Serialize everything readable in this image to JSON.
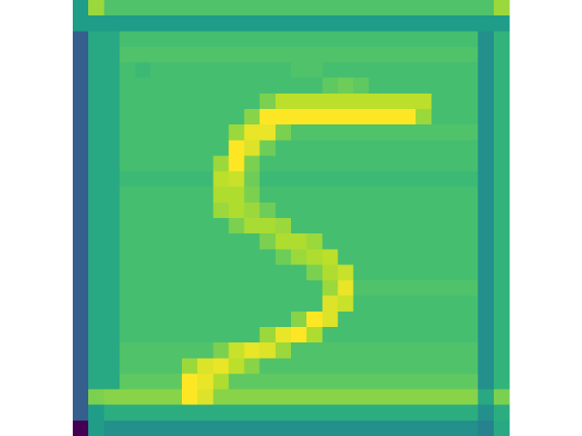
{
  "chart_data": {
    "type": "heatmap",
    "colormap": "viridis",
    "z": [
      [
        0.55,
        0.85,
        0.72,
        0.72,
        0.72,
        0.72,
        0.72,
        0.72,
        0.72,
        0.72,
        0.72,
        0.72,
        0.72,
        0.72,
        0.72,
        0.72,
        0.72,
        0.72,
        0.72,
        0.72,
        0.72,
        0.72,
        0.72,
        0.72,
        0.72,
        0.72,
        0.72,
        0.85
      ],
      [
        0.55,
        0.55,
        0.55,
        0.55,
        0.55,
        0.55,
        0.55,
        0.55,
        0.55,
        0.55,
        0.55,
        0.55,
        0.55,
        0.55,
        0.55,
        0.55,
        0.55,
        0.55,
        0.55,
        0.55,
        0.55,
        0.55,
        0.55,
        0.55,
        0.55,
        0.55,
        0.55,
        0.55
      ],
      [
        0.3,
        0.6,
        0.6,
        0.7,
        0.7,
        0.7,
        0.7,
        0.7,
        0.7,
        0.7,
        0.7,
        0.7,
        0.7,
        0.7,
        0.7,
        0.7,
        0.7,
        0.7,
        0.7,
        0.7,
        0.7,
        0.7,
        0.7,
        0.7,
        0.7,
        0.7,
        0.5,
        0.65
      ],
      [
        0.3,
        0.6,
        0.6,
        0.72,
        0.72,
        0.72,
        0.72,
        0.72,
        0.72,
        0.72,
        0.72,
        0.72,
        0.72,
        0.72,
        0.72,
        0.72,
        0.72,
        0.72,
        0.72,
        0.72,
        0.72,
        0.72,
        0.72,
        0.72,
        0.72,
        0.72,
        0.5,
        0.65
      ],
      [
        0.3,
        0.6,
        0.6,
        0.7,
        0.68,
        0.7,
        0.7,
        0.7,
        0.7,
        0.7,
        0.7,
        0.7,
        0.7,
        0.7,
        0.72,
        0.72,
        0.7,
        0.7,
        0.7,
        0.7,
        0.7,
        0.7,
        0.7,
        0.7,
        0.7,
        0.7,
        0.5,
        0.65
      ],
      [
        0.3,
        0.6,
        0.6,
        0.7,
        0.7,
        0.7,
        0.7,
        0.7,
        0.7,
        0.7,
        0.7,
        0.7,
        0.7,
        0.7,
        0.7,
        0.7,
        0.75,
        0.78,
        0.75,
        0.7,
        0.7,
        0.7,
        0.7,
        0.7,
        0.7,
        0.7,
        0.5,
        0.65
      ],
      [
        0.3,
        0.6,
        0.6,
        0.7,
        0.7,
        0.7,
        0.7,
        0.7,
        0.7,
        0.7,
        0.7,
        0.7,
        0.8,
        0.9,
        0.9,
        0.9,
        0.9,
        0.9,
        0.9,
        0.9,
        0.9,
        0.9,
        0.9,
        0.7,
        0.7,
        0.7,
        0.5,
        0.65
      ],
      [
        0.3,
        0.6,
        0.6,
        0.7,
        0.7,
        0.7,
        0.7,
        0.7,
        0.7,
        0.7,
        0.7,
        0.82,
        1.0,
        1.0,
        1.0,
        1.0,
        1.0,
        1.0,
        1.0,
        1.0,
        1.0,
        1.0,
        0.85,
        0.7,
        0.7,
        0.7,
        0.5,
        0.65
      ],
      [
        0.3,
        0.6,
        0.6,
        0.7,
        0.7,
        0.7,
        0.7,
        0.7,
        0.7,
        0.7,
        0.85,
        0.97,
        0.97,
        0.8,
        0.72,
        0.72,
        0.72,
        0.72,
        0.72,
        0.72,
        0.72,
        0.72,
        0.72,
        0.72,
        0.72,
        0.72,
        0.5,
        0.65
      ],
      [
        0.3,
        0.6,
        0.6,
        0.7,
        0.7,
        0.7,
        0.7,
        0.7,
        0.7,
        0.7,
        1.0,
        0.95,
        0.78,
        0.7,
        0.7,
        0.7,
        0.7,
        0.7,
        0.7,
        0.7,
        0.7,
        0.7,
        0.7,
        0.7,
        0.7,
        0.7,
        0.5,
        0.65
      ],
      [
        0.3,
        0.6,
        0.6,
        0.7,
        0.7,
        0.7,
        0.7,
        0.7,
        0.7,
        0.85,
        1.0,
        0.8,
        0.7,
        0.7,
        0.7,
        0.7,
        0.7,
        0.7,
        0.7,
        0.7,
        0.7,
        0.7,
        0.7,
        0.7,
        0.7,
        0.7,
        0.5,
        0.65
      ],
      [
        0.3,
        0.6,
        0.6,
        0.68,
        0.68,
        0.68,
        0.68,
        0.68,
        0.68,
        0.9,
        0.92,
        0.78,
        0.68,
        0.68,
        0.68,
        0.68,
        0.68,
        0.68,
        0.68,
        0.68,
        0.68,
        0.68,
        0.68,
        0.68,
        0.68,
        0.68,
        0.5,
        0.65
      ],
      [
        0.3,
        0.6,
        0.6,
        0.7,
        0.7,
        0.7,
        0.7,
        0.7,
        0.7,
        0.88,
        0.88,
        0.8,
        0.7,
        0.7,
        0.7,
        0.7,
        0.7,
        0.7,
        0.7,
        0.7,
        0.7,
        0.7,
        0.7,
        0.7,
        0.7,
        0.7,
        0.5,
        0.65
      ],
      [
        0.3,
        0.6,
        0.6,
        0.7,
        0.7,
        0.7,
        0.7,
        0.7,
        0.7,
        0.85,
        0.88,
        0.85,
        0.78,
        0.7,
        0.7,
        0.7,
        0.7,
        0.7,
        0.7,
        0.7,
        0.7,
        0.7,
        0.7,
        0.7,
        0.7,
        0.7,
        0.5,
        0.65
      ],
      [
        0.3,
        0.6,
        0.6,
        0.7,
        0.7,
        0.7,
        0.7,
        0.7,
        0.7,
        0.7,
        0.8,
        0.87,
        0.87,
        0.85,
        0.7,
        0.7,
        0.7,
        0.7,
        0.7,
        0.7,
        0.7,
        0.7,
        0.7,
        0.7,
        0.7,
        0.7,
        0.5,
        0.65
      ],
      [
        0.3,
        0.6,
        0.6,
        0.7,
        0.7,
        0.7,
        0.7,
        0.7,
        0.7,
        0.7,
        0.7,
        0.7,
        0.8,
        0.88,
        0.88,
        0.85,
        0.7,
        0.7,
        0.7,
        0.7,
        0.7,
        0.7,
        0.7,
        0.7,
        0.7,
        0.7,
        0.5,
        0.65
      ],
      [
        0.3,
        0.6,
        0.6,
        0.7,
        0.7,
        0.7,
        0.7,
        0.7,
        0.7,
        0.7,
        0.7,
        0.7,
        0.7,
        0.78,
        0.85,
        0.88,
        0.9,
        0.7,
        0.7,
        0.7,
        0.7,
        0.7,
        0.7,
        0.7,
        0.7,
        0.7,
        0.5,
        0.65
      ],
      [
        0.3,
        0.6,
        0.6,
        0.7,
        0.7,
        0.7,
        0.7,
        0.7,
        0.7,
        0.7,
        0.7,
        0.7,
        0.7,
        0.7,
        0.7,
        0.8,
        0.88,
        0.92,
        0.7,
        0.7,
        0.7,
        0.7,
        0.7,
        0.7,
        0.7,
        0.7,
        0.5,
        0.65
      ],
      [
        0.3,
        0.6,
        0.6,
        0.7,
        0.7,
        0.7,
        0.7,
        0.7,
        0.7,
        0.7,
        0.7,
        0.7,
        0.7,
        0.7,
        0.7,
        0.7,
        0.85,
        0.97,
        0.72,
        0.72,
        0.72,
        0.72,
        0.72,
        0.72,
        0.72,
        0.72,
        0.5,
        0.65
      ],
      [
        0.3,
        0.6,
        0.6,
        0.7,
        0.7,
        0.7,
        0.7,
        0.7,
        0.7,
        0.7,
        0.7,
        0.7,
        0.7,
        0.7,
        0.7,
        0.7,
        0.95,
        0.92,
        0.7,
        0.7,
        0.7,
        0.7,
        0.7,
        0.7,
        0.7,
        0.7,
        0.5,
        0.65
      ],
      [
        0.3,
        0.6,
        0.6,
        0.7,
        0.7,
        0.7,
        0.7,
        0.7,
        0.7,
        0.7,
        0.7,
        0.7,
        0.7,
        0.7,
        0.82,
        1.0,
        0.95,
        0.7,
        0.7,
        0.7,
        0.7,
        0.7,
        0.7,
        0.7,
        0.7,
        0.7,
        0.5,
        0.65
      ],
      [
        0.3,
        0.6,
        0.6,
        0.7,
        0.7,
        0.7,
        0.7,
        0.7,
        0.7,
        0.7,
        0.7,
        0.7,
        0.85,
        0.97,
        1.0,
        0.88,
        0.7,
        0.7,
        0.7,
        0.7,
        0.7,
        0.7,
        0.7,
        0.7,
        0.7,
        0.7,
        0.5,
        0.65
      ],
      [
        0.3,
        0.6,
        0.6,
        0.72,
        0.72,
        0.72,
        0.72,
        0.72,
        0.72,
        0.8,
        0.92,
        0.97,
        0.95,
        0.85,
        0.72,
        0.72,
        0.72,
        0.72,
        0.72,
        0.72,
        0.72,
        0.72,
        0.72,
        0.72,
        0.72,
        0.72,
        0.5,
        0.65
      ],
      [
        0.3,
        0.6,
        0.6,
        0.72,
        0.72,
        0.72,
        0.72,
        0.85,
        0.95,
        0.97,
        0.9,
        0.82,
        0.72,
        0.72,
        0.72,
        0.72,
        0.72,
        0.72,
        0.72,
        0.72,
        0.72,
        0.72,
        0.72,
        0.72,
        0.72,
        0.72,
        0.5,
        0.65
      ],
      [
        0.3,
        0.6,
        0.6,
        0.75,
        0.75,
        0.75,
        0.75,
        1.0,
        0.97,
        0.88,
        0.75,
        0.75,
        0.75,
        0.75,
        0.75,
        0.75,
        0.75,
        0.75,
        0.75,
        0.75,
        0.75,
        0.75,
        0.75,
        0.75,
        0.75,
        0.75,
        0.5,
        0.65
      ],
      [
        0.3,
        0.8,
        0.82,
        0.82,
        0.82,
        0.82,
        0.82,
        1.0,
        0.95,
        0.82,
        0.82,
        0.82,
        0.82,
        0.82,
        0.82,
        0.82,
        0.82,
        0.82,
        0.82,
        0.82,
        0.82,
        0.82,
        0.82,
        0.82,
        0.82,
        0.82,
        0.6,
        0.8
      ],
      [
        0.3,
        0.55,
        0.62,
        0.62,
        0.62,
        0.62,
        0.62,
        0.62,
        0.62,
        0.62,
        0.62,
        0.62,
        0.62,
        0.62,
        0.62,
        0.62,
        0.62,
        0.62,
        0.62,
        0.62,
        0.62,
        0.62,
        0.62,
        0.62,
        0.62,
        0.62,
        0.5,
        0.62
      ],
      [
        0.0,
        0.55,
        0.5,
        0.5,
        0.5,
        0.5,
        0.5,
        0.5,
        0.5,
        0.5,
        0.5,
        0.5,
        0.5,
        0.5,
        0.5,
        0.5,
        0.5,
        0.5,
        0.5,
        0.5,
        0.5,
        0.5,
        0.5,
        0.5,
        0.5,
        0.5,
        0.45,
        0.6
      ]
    ]
  }
}
